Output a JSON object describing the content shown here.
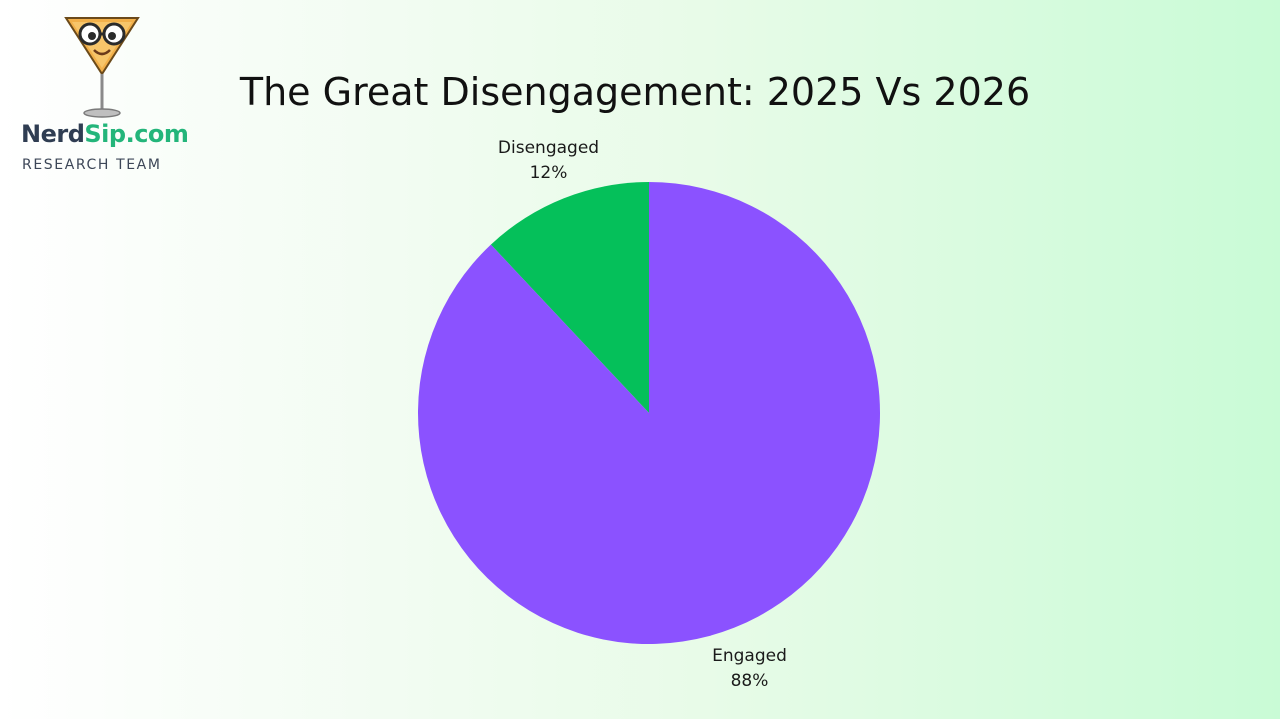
{
  "logo": {
    "brand_part1": "Nerd",
    "brand_part2": "Sip.com",
    "tagline": "RESEARCH TEAM",
    "icon": "martini-glass-nerd-mascot-icon"
  },
  "chart_data": {
    "type": "pie",
    "title": "The Great Disengagement: 2025 Vs 2026",
    "slices": [
      {
        "label": "Disengaged",
        "value": 12,
        "value_label": "12%",
        "color": "#05c05a"
      },
      {
        "label": "Engaged",
        "value": 88,
        "value_label": "88%",
        "color": "#8b52ff"
      }
    ],
    "start": "top",
    "direction": "counterclockwise",
    "legend": "none"
  }
}
